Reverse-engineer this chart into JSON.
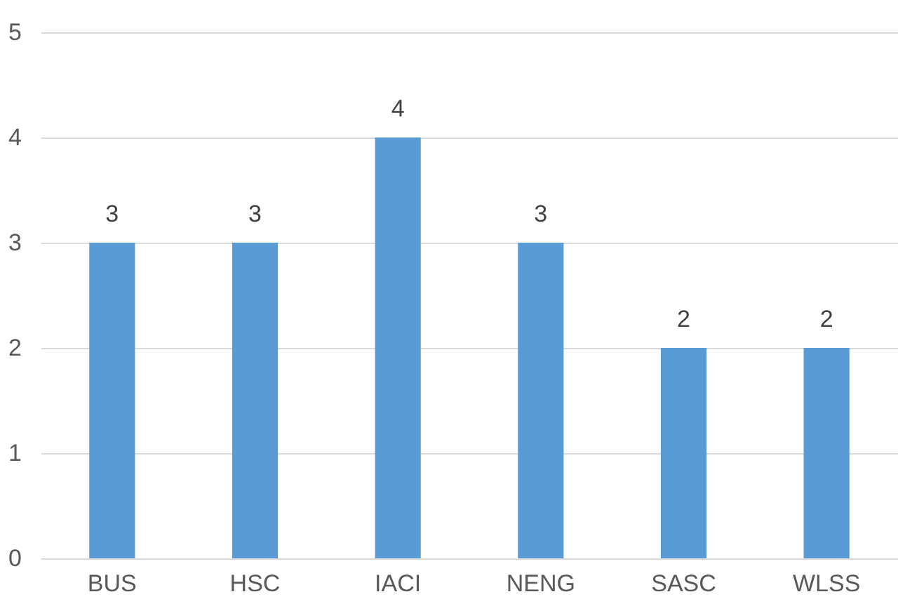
{
  "chart_data": {
    "type": "bar",
    "categories": [
      "BUS",
      "HSC",
      "IACI",
      "NENG",
      "SASC",
      "WLSS"
    ],
    "values": [
      3,
      3,
      4,
      3,
      2,
      2
    ],
    "color": "#5b9bd5",
    "ylim": [
      0,
      5
    ],
    "yticks": [
      0,
      1,
      2,
      3,
      4,
      5
    ],
    "grid": "y",
    "data_labels": true
  }
}
